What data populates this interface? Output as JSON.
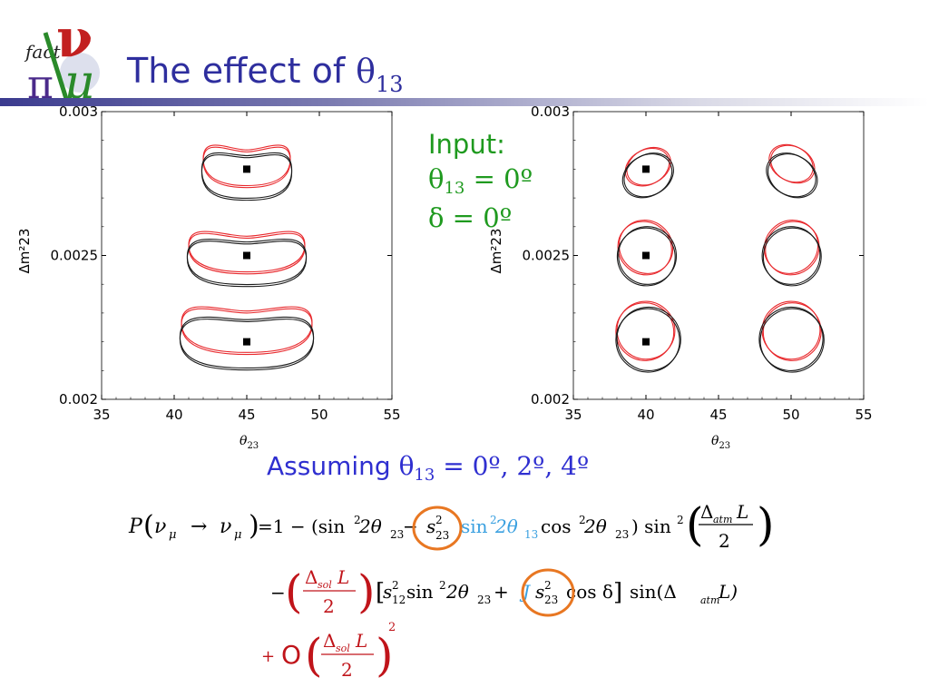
{
  "slide": {
    "title_prefix": "The effect of ",
    "title_symbol": "θ",
    "title_subscript": "13",
    "logo_text": "fact",
    "input": {
      "heading": "Input:",
      "line1": "θ13 = 0º",
      "line1_symbol": "θ",
      "line1_sub": "13",
      "line1_rest": " = 0º",
      "line2": "δ = 0º"
    },
    "assuming": {
      "prefix": "Assuming ",
      "symbol": "θ",
      "sub": "13",
      "rest": " =  0º, 2º, 4º"
    },
    "colors": {
      "title": "#2e2e9e",
      "input": "#1f9a1f",
      "assuming": "#2f2fd0",
      "series_red": "#e8292d",
      "series_black": "#1a1a1a",
      "circle": "#e87722",
      "formula_red": "#c0141a",
      "formula_blue": "#3aa0e0"
    }
  },
  "chart_data": [
    {
      "type": "scatter",
      "xlabel": "θ23",
      "ylabel": "Δm²23",
      "xlim": [
        35,
        55
      ],
      "ylim": [
        0.002,
        0.003
      ],
      "x_ticks": [
        35,
        40,
        45,
        50,
        55
      ],
      "y_ticks": [
        "0.002",
        "0.0025",
        "0.003"
      ],
      "true_points": [
        {
          "x": 45,
          "y": 0.0028
        },
        {
          "x": 45,
          "y": 0.0025
        },
        {
          "x": 45,
          "y": 0.0022
        }
      ],
      "contours": [
        {
          "color": "red",
          "cx": 45,
          "cy": 0.00283,
          "rx": 3.0,
          "ry": 7e-05,
          "curve": 4e-05,
          "rot": 0
        },
        {
          "color": "black",
          "cx": 45,
          "cy": 0.00279,
          "rx": 3.1,
          "ry": 8e-05,
          "curve": 3e-05,
          "rot": 0
        },
        {
          "color": "red",
          "cx": 45,
          "cy": 0.00253,
          "rx": 4.0,
          "ry": 7e-05,
          "curve": 4e-05,
          "rot": 0
        },
        {
          "color": "black",
          "cx": 45,
          "cy": 0.00249,
          "rx": 4.1,
          "ry": 8e-05,
          "curve": 3e-05,
          "rot": 0
        },
        {
          "color": "red",
          "cx": 45,
          "cy": 0.00226,
          "rx": 4.5,
          "ry": 8e-05,
          "curve": 4e-05,
          "rot": 0
        },
        {
          "color": "black",
          "cx": 45,
          "cy": 0.00221,
          "rx": 4.6,
          "ry": 9e-05,
          "curve": 3e-05,
          "rot": 0
        }
      ]
    },
    {
      "type": "scatter",
      "xlabel": "θ23",
      "ylabel": "Δm²23",
      "xlim": [
        35,
        55
      ],
      "ylim": [
        0.002,
        0.003
      ],
      "x_ticks": [
        35,
        40,
        45,
        50,
        55
      ],
      "y_ticks": [
        "0.002",
        "0.0025",
        "0.003"
      ],
      "true_points": [
        {
          "x": 40,
          "y": 0.0028
        },
        {
          "x": 40,
          "y": 0.0025
        },
        {
          "x": 40,
          "y": 0.0022
        }
      ],
      "contours": [
        {
          "color": "red",
          "cx": 40.2,
          "cy": 0.00281,
          "rx": 1.2,
          "ry": 8e-05,
          "rot": 62
        },
        {
          "color": "black",
          "cx": 40.2,
          "cy": 0.00278,
          "rx": 1.4,
          "ry": 9e-05,
          "rot": 60
        },
        {
          "color": "red",
          "cx": 50.0,
          "cy": 0.00282,
          "rx": 1.2,
          "ry": 8e-05,
          "rot": -62
        },
        {
          "color": "black",
          "cx": 50.0,
          "cy": 0.00278,
          "rx": 1.4,
          "ry": 9e-05,
          "rot": -60
        },
        {
          "color": "red",
          "cx": 40.0,
          "cy": 0.00253,
          "rx": 1.9,
          "ry": 9e-05,
          "rot": 42
        },
        {
          "color": "black",
          "cx": 40.1,
          "cy": 0.0025,
          "rx": 2.0,
          "ry": 0.0001,
          "rot": 40
        },
        {
          "color": "red",
          "cx": 50.0,
          "cy": 0.00253,
          "rx": 1.9,
          "ry": 9e-05,
          "rot": -42
        },
        {
          "color": "black",
          "cx": 50.0,
          "cy": 0.0025,
          "rx": 2.0,
          "ry": 0.0001,
          "rot": -40
        },
        {
          "color": "red",
          "cx": 40.0,
          "cy": 0.00224,
          "rx": 2.0,
          "ry": 0.0001,
          "rot": 38
        },
        {
          "color": "black",
          "cx": 40.2,
          "cy": 0.00221,
          "rx": 2.2,
          "ry": 0.00011,
          "rot": 36
        },
        {
          "color": "red",
          "cx": 50.0,
          "cy": 0.00224,
          "rx": 2.0,
          "ry": 0.0001,
          "rot": -38
        },
        {
          "color": "black",
          "cx": 50.0,
          "cy": 0.00221,
          "rx": 2.2,
          "ry": 0.00011,
          "rot": -36
        }
      ]
    }
  ],
  "formula": {
    "line1": {
      "P": "P",
      "nu": "ν",
      "mu": "μ",
      "arrow": "→",
      "equals_one_minus": "=1 − (sin",
      "sq": "2",
      "two_theta": " 2θ",
      "sub23": "23",
      "minus": " −",
      "s": "s",
      "sin_blue": "sin",
      "two_theta13": " 2θ",
      "sub13": "13",
      "cos": " cos",
      "close": ") sin",
      "frac_num": "Δ",
      "frac_num_sub": "atm",
      "frac_num_L": "L",
      "frac_den": "2"
    },
    "line2": {
      "minus": "−",
      "frac_num": "Δ",
      "frac_num_sub": "sol",
      "frac_num_L": "L",
      "frac_den": "2",
      "s12": "s",
      "sub12": "12",
      "sin": " sin",
      "two_theta": " 2θ",
      "sub23": "23",
      "plus": " + ",
      "blue_J": "J",
      "cos_delta": "cos δ",
      "close_bracket": " ]",
      "sin_delta": " sin(Δ",
      "sub_atm": "atm",
      "L_close": " L)"
    },
    "line3": {
      "plus": "+",
      "O": "O",
      "frac_num": "Δ",
      "frac_num_sub": "sol",
      "frac_num_L": "L",
      "frac_den": "2",
      "power": "2"
    }
  }
}
